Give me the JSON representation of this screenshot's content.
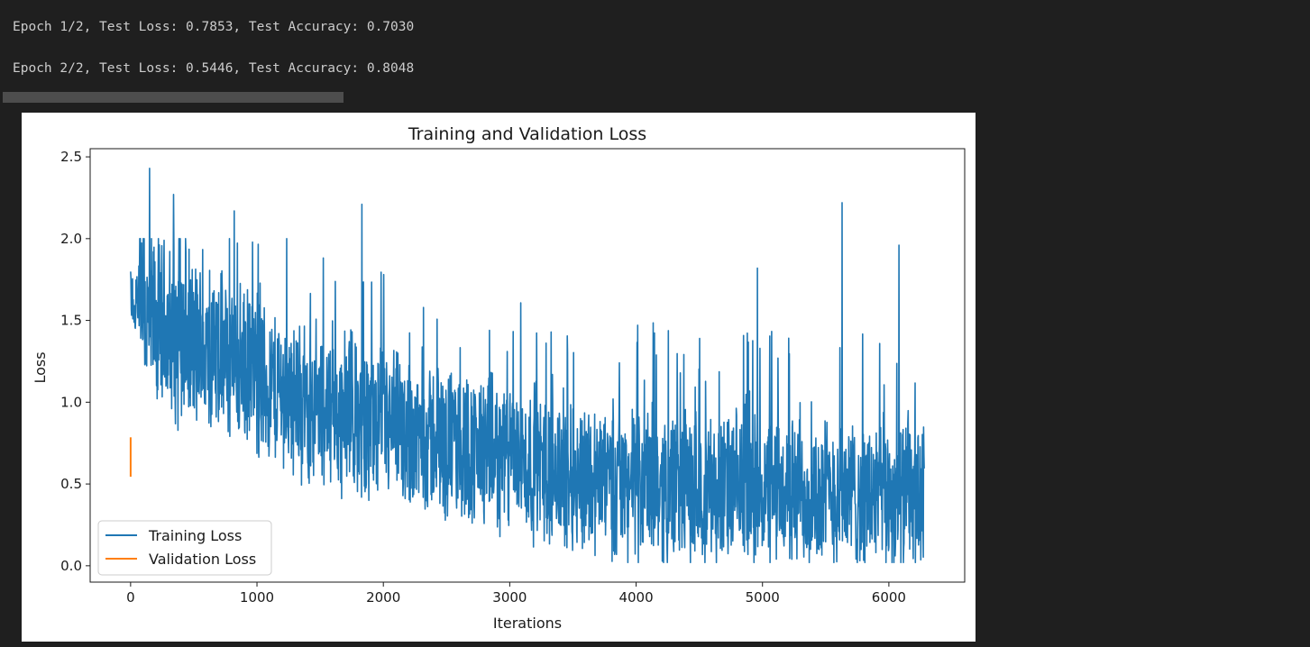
{
  "output": {
    "lines": [
      "Epoch 1/2, Test Loss: 0.7853, Test Accuracy: 0.7030",
      "Epoch 2/2, Test Loss: 0.5446, Test Accuracy: 0.8048"
    ]
  },
  "progress": {
    "fraction": 1.0
  },
  "chart_data": {
    "type": "line",
    "title": "Training and Validation Loss",
    "xlabel": "Iterations",
    "ylabel": "Loss",
    "xlim": [
      -320,
      6600
    ],
    "ylim": [
      -0.1,
      2.55
    ],
    "xticks": [
      0,
      1000,
      2000,
      3000,
      4000,
      5000,
      6000
    ],
    "yticks": [
      0.0,
      0.5,
      1.0,
      1.5,
      2.0,
      2.5
    ],
    "ytick_labels": [
      "0.0",
      "0.5",
      "1.0",
      "1.5",
      "2.0",
      "2.5"
    ],
    "grid": false,
    "legend": "lower-left",
    "colors": {
      "train": "#1f77b4",
      "val": "#ff7f0e"
    },
    "series": [
      {
        "name": "Training Loss",
        "color": "#1f77b4",
        "x_range": [
          0,
          6280
        ],
        "trend": [
          [
            0,
            1.55
          ],
          [
            500,
            1.35
          ],
          [
            1000,
            1.15
          ],
          [
            1500,
            0.95
          ],
          [
            2000,
            0.85
          ],
          [
            2500,
            0.75
          ],
          [
            3000,
            0.65
          ],
          [
            3500,
            0.55
          ],
          [
            4000,
            0.5
          ],
          [
            5000,
            0.45
          ],
          [
            6280,
            0.42
          ]
        ],
        "peaks": [
          [
            150,
            2.43
          ],
          [
            340,
            2.27
          ],
          [
            820,
            2.17
          ],
          [
            1830,
            2.21
          ],
          [
            5630,
            2.22
          ],
          [
            6080,
            1.96
          ],
          [
            4960,
            1.82
          ]
        ]
      },
      {
        "name": "Validation Loss",
        "color": "#ff7f0e",
        "x": [
          0,
          0
        ],
        "y": [
          0.7853,
          0.5446
        ]
      }
    ]
  }
}
